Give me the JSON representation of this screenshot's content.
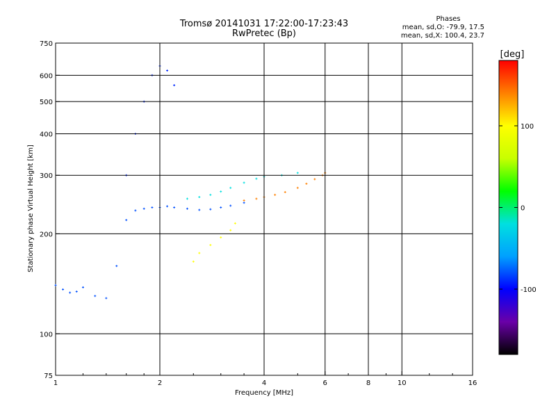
{
  "chart_data": {
    "type": "scatter",
    "title": "Tromsø 20141031 17:22:00-17:23:43",
    "subtitle": "RwPretec (Bp)",
    "phases": {
      "heading": "Phases",
      "o_line": "mean, sd,O: -79.9, 17.5",
      "x_line": "mean, sd,X: 100.4, 23.7"
    },
    "xlabel": "Frequency [MHz]",
    "ylabel": "Stationary phase Virtual Height [km]",
    "x_scale": "log",
    "y_scale": "log",
    "xlim": [
      1,
      16
    ],
    "ylim": [
      75,
      750
    ],
    "x_ticks": [
      1,
      2,
      4,
      6,
      8,
      10,
      16
    ],
    "x_tick_labels": [
      "1",
      "2",
      "4",
      "6",
      "8",
      "10",
      "16"
    ],
    "y_ticks": [
      75,
      100,
      200,
      300,
      400,
      500,
      600,
      750
    ],
    "y_tick_labels": [
      "75",
      "100",
      "200",
      "300",
      "400",
      "500",
      "600",
      "750"
    ],
    "v_grid": [
      2,
      4,
      6,
      8,
      10
    ],
    "h_grid": [
      100,
      200,
      300,
      400,
      500,
      600
    ],
    "grid": true,
    "colorbar": {
      "label": "[deg]",
      "range": [
        -180,
        180
      ],
      "ticks": [
        100,
        0,
        -100
      ],
      "tick_labels": [
        "100",
        "0",
        "-100"
      ],
      "colors": [
        "#000000",
        "#6a00a8",
        "#0000ff",
        "#00a0ff",
        "#00e0e0",
        "#00ff00",
        "#c8ff00",
        "#ffff00",
        "#ff8000",
        "#ff0000"
      ]
    },
    "series": [
      {
        "phase_deg": -80,
        "x": [
          1.0,
          1.05,
          1.1,
          1.15,
          1.2,
          1.3,
          1.4,
          1.5,
          1.6,
          1.7,
          1.8,
          1.9,
          2.0,
          2.1,
          2.2,
          2.4,
          2.6,
          2.8,
          3.0,
          3.2,
          3.5
        ],
        "y": [
          140,
          136,
          133,
          134,
          138,
          130,
          128,
          160,
          220,
          235,
          238,
          240,
          240,
          242,
          240,
          238,
          236,
          237,
          240,
          243,
          248
        ]
      },
      {
        "phase_deg": -20,
        "x": [
          2.4,
          2.6,
          2.8,
          3.0,
          3.2,
          3.5,
          3.8,
          4.0,
          4.5,
          5.0
        ],
        "y": [
          255,
          258,
          262,
          268,
          275,
          285,
          293,
          297,
          300,
          305
        ]
      },
      {
        "phase_deg": 140,
        "x": [
          3.5,
          3.8,
          4.0,
          4.3,
          4.6,
          5.0,
          5.3,
          5.6,
          5.9,
          6.0
        ],
        "y": [
          252,
          255,
          258,
          262,
          267,
          275,
          283,
          292,
          300,
          305
        ]
      },
      {
        "phase_deg": 100,
        "x": [
          2.5,
          2.6,
          2.8,
          3.0,
          3.2,
          3.3
        ],
        "y": [
          165,
          175,
          185,
          195,
          205,
          215
        ]
      },
      {
        "phase_deg": -90,
        "x": [
          1.6,
          1.7,
          1.8,
          1.9,
          2.0,
          2.1,
          2.2
        ],
        "y": [
          300,
          400,
          500,
          600,
          640,
          620,
          560
        ]
      }
    ]
  }
}
